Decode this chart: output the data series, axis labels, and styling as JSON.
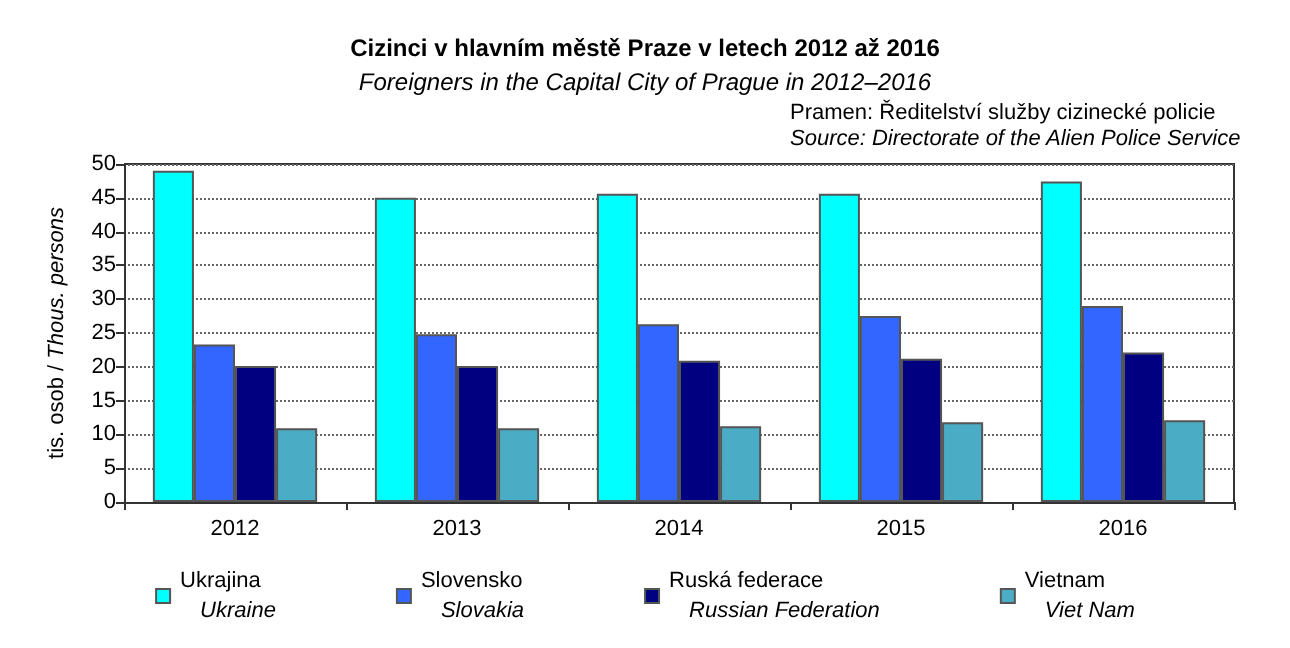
{
  "chart_data": {
    "type": "bar",
    "title": "Cizinci v hlavním městě Praze v letech 2012 až 2016",
    "subtitle": "Foreigners in the Capital City of Prague in 2012–2016",
    "ylabel": "tis. osob / Thous. persons",
    "annotations": [
      "Pramen: Ředitelství služby cizinecké policie",
      "Source: Directorate of the Alien Police Service"
    ],
    "categories": [
      "2012",
      "2013",
      "2014",
      "2015",
      "2016"
    ],
    "series": [
      {
        "name": "Ukrajina\nUkraine",
        "color": "#00ffff",
        "values": [
          49.0,
          45.0,
          45.6,
          45.6,
          47.4
        ]
      },
      {
        "name": "Slovensko\nSlovakia",
        "color": "#3366ff",
        "values": [
          23.3,
          24.8,
          26.3,
          27.5,
          29.0
        ]
      },
      {
        "name": "Ruská federace\nRussian Federation",
        "color": "#000080",
        "values": [
          20.1,
          20.1,
          20.9,
          21.2,
          22.1
        ]
      },
      {
        "name": "Vietnam\nViet Nam",
        "color": "#4bacc6",
        "values": [
          10.9,
          10.9,
          11.2,
          11.8,
          12.1
        ]
      }
    ],
    "ylim": [
      0,
      50
    ],
    "yticks": [
      0,
      5,
      10,
      15,
      20,
      25,
      30,
      35,
      40,
      45,
      50
    ],
    "grid": "y",
    "legend": "bottom"
  }
}
